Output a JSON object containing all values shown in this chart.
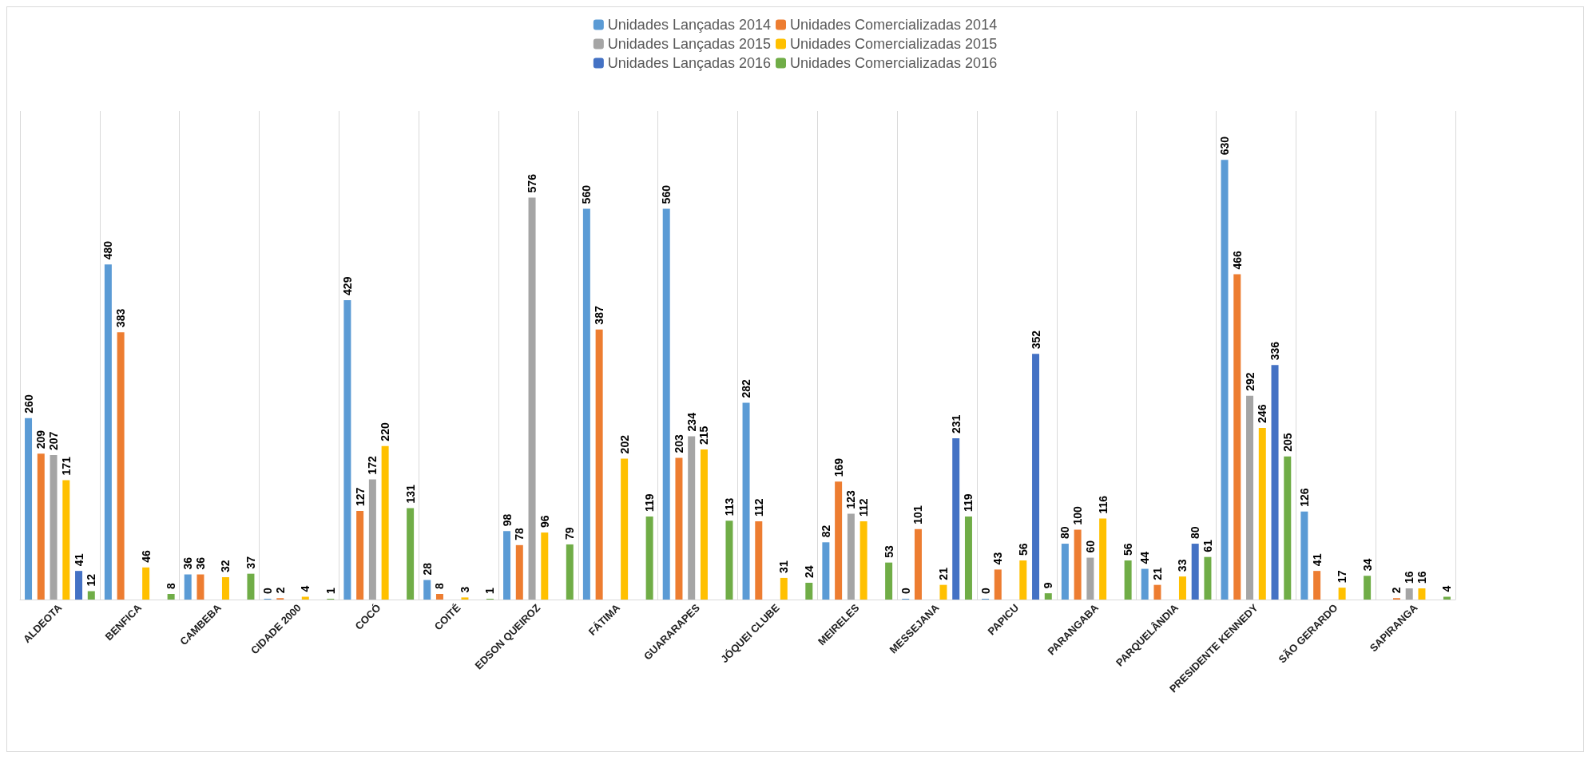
{
  "chart_data": {
    "type": "bar",
    "categories": [
      "ALDEOTA",
      "BENFICA",
      "CAMBEBA",
      "CIDADE 2000",
      "COCÓ",
      "COITÉ",
      "EDSON QUEIROZ",
      "FÁTIMA",
      "GUARARAPES",
      "JÓQUEI CLUBE",
      "MEIRELES",
      "MESSEJANA",
      "PAPICU",
      "PARANGABA",
      "PARQUELÂNDIA",
      "PRESIDENTE KENNEDY",
      "SÃO GERARDO",
      "SAPIRANGA"
    ],
    "series": [
      {
        "name": "Unidades Lançadas 2014",
        "color": "#5b9bd5",
        "values": [
          260,
          480,
          36,
          0,
          429,
          28,
          98,
          560,
          560,
          282,
          82,
          0,
          0,
          80,
          44,
          630,
          126,
          null
        ]
      },
      {
        "name": "Unidades Comercializadas 2014",
        "color": "#ed7d31",
        "values": [
          209,
          383,
          36,
          2,
          127,
          8,
          78,
          387,
          203,
          112,
          169,
          101,
          43,
          100,
          21,
          466,
          41,
          2
        ]
      },
      {
        "name": "Unidades Lançadas 2015",
        "color": "#a5a5a5",
        "values": [
          207,
          null,
          null,
          null,
          172,
          null,
          576,
          null,
          234,
          null,
          123,
          null,
          null,
          60,
          null,
          292,
          null,
          16
        ]
      },
      {
        "name": "Unidades Comercializadas 2015",
        "color": "#ffc000",
        "values": [
          171,
          46,
          32,
          4,
          220,
          3,
          96,
          202,
          215,
          31,
          112,
          21,
          56,
          116,
          33,
          246,
          17,
          16
        ]
      },
      {
        "name": "Unidades Lançadas 2016",
        "color": "#4472c4",
        "values": [
          41,
          null,
          null,
          null,
          null,
          null,
          null,
          null,
          null,
          null,
          null,
          231,
          352,
          null,
          80,
          336,
          null,
          null
        ]
      },
      {
        "name": "Unidades Comercializadas 2016",
        "color": "#70ad47",
        "values": [
          12,
          8,
          37,
          1,
          131,
          1,
          79,
          119,
          113,
          24,
          53,
          119,
          9,
          56,
          61,
          205,
          34,
          4
        ]
      }
    ],
    "data_labels": true,
    "grid": "x",
    "legend": "top"
  }
}
